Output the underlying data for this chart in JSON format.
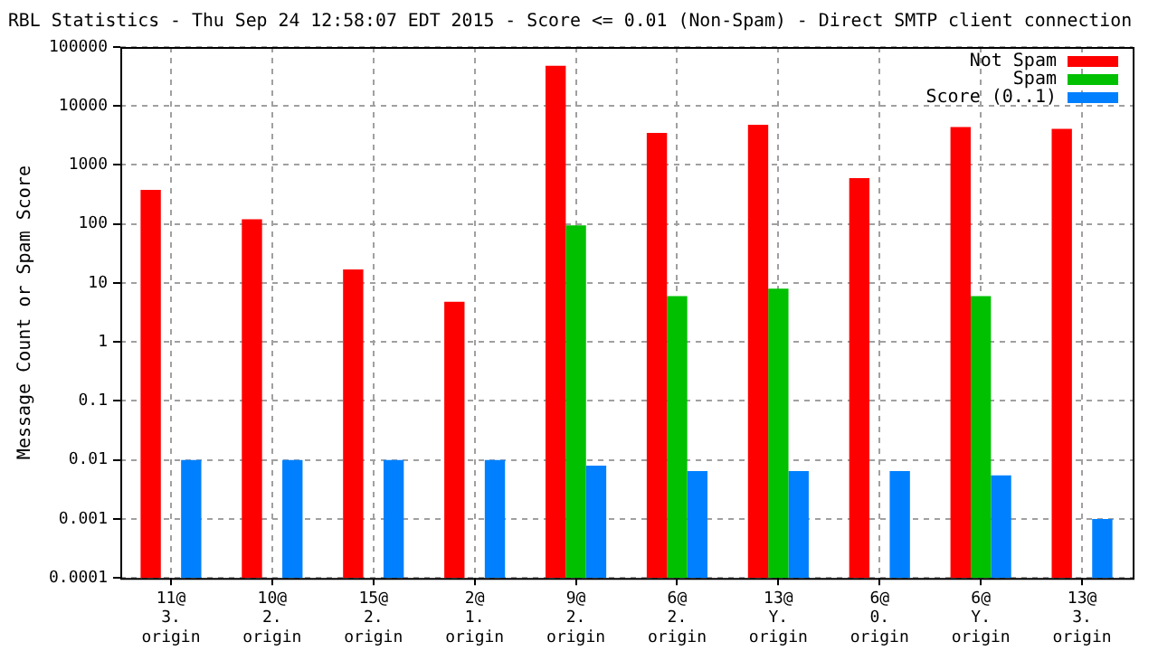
{
  "chart_data": {
    "type": "bar",
    "title": "RBL Statistics - Thu Sep 24 12:58:07 EDT 2015 - Score <= 0.01 (Non-Spam) - Direct SMTP client connection",
    "ylabel": "Message Count or Spam Score",
    "categories": [
      "11@ 3. origin",
      "10@ 2. origin",
      "15@ 2. origin",
      "2@ 1. origin",
      "9@ 2. origin",
      "6@ 2. origin",
      "13@ Y. origin",
      "6@ 0. origin",
      "6@ Y. origin",
      "13@ 3. origin"
    ],
    "series": [
      {
        "name": "Not Spam",
        "color": "#ff0000",
        "values": [
          380,
          120,
          17,
          4.8,
          48000,
          3500,
          4800,
          600,
          4400,
          4100
        ]
      },
      {
        "name": "Spam",
        "color": "#00c000",
        "values": [
          null,
          null,
          null,
          null,
          95,
          6,
          8,
          null,
          6,
          null
        ]
      },
      {
        "name": "Score (0..1)",
        "color": "#0080ff",
        "values": [
          0.01,
          0.01,
          0.01,
          0.01,
          0.008,
          0.0065,
          0.0065,
          0.0065,
          0.0055,
          0.001
        ]
      }
    ],
    "log": "y",
    "ylim": [
      0.0001,
      100000
    ],
    "yticks": [
      0.0001,
      0.001,
      0.01,
      0.1,
      1,
      10,
      100,
      1000,
      10000,
      100000
    ],
    "grid": true,
    "legend": "top right"
  }
}
